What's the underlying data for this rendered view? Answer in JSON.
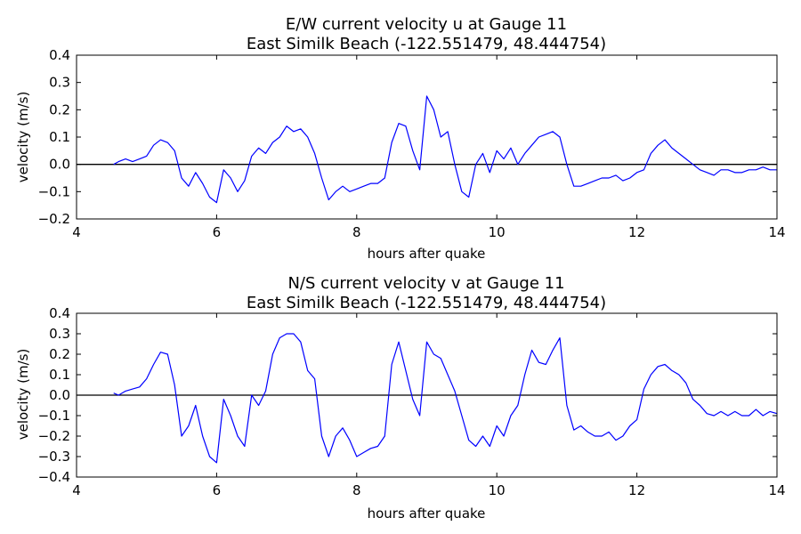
{
  "chart_data": [
    {
      "type": "line",
      "title": [
        "E/W current velocity u at Gauge 11",
        "East Similk Beach  (-122.551479, 48.444754)"
      ],
      "xlabel": "hours after quake",
      "ylabel": "velocity (m/s)",
      "xlim": [
        4,
        14
      ],
      "ylim": [
        -0.2,
        0.4
      ],
      "xticks": [
        "4",
        "6",
        "8",
        "10",
        "12",
        "14"
      ],
      "yticks": [
        "−0.2",
        "−0.1",
        "0.0",
        "0.1",
        "0.2",
        "0.3",
        "0.4"
      ],
      "zero_line": 0,
      "grid": false,
      "colors": {
        "series": "#0000ff",
        "zero_line": "#000000"
      },
      "series": [
        {
          "x": [
            4.53,
            4.6,
            4.7,
            4.8,
            4.9,
            5.0,
            5.1,
            5.2,
            5.3,
            5.4,
            5.5,
            5.6,
            5.7,
            5.8,
            5.9,
            6.0,
            6.1,
            6.2,
            6.3,
            6.4,
            6.5,
            6.6,
            6.7,
            6.8,
            6.9,
            7.0,
            7.1,
            7.2,
            7.3,
            7.4,
            7.5,
            7.6,
            7.7,
            7.8,
            7.9,
            8.0,
            8.1,
            8.2,
            8.3,
            8.4,
            8.5,
            8.6,
            8.7,
            8.8,
            8.9,
            9.0,
            9.1,
            9.2,
            9.3,
            9.4,
            9.5,
            9.6,
            9.7,
            9.8,
            9.9,
            10.0,
            10.1,
            10.2,
            10.3,
            10.4,
            10.5,
            10.6,
            10.7,
            10.8,
            10.9,
            11.0,
            11.1,
            11.2,
            11.3,
            11.4,
            11.5,
            11.6,
            11.7,
            11.8,
            11.9,
            12.0,
            12.1,
            12.2,
            12.3,
            12.4,
            12.5,
            12.6,
            12.7,
            12.8,
            12.9,
            13.0,
            13.1,
            13.2,
            13.3,
            13.4,
            13.5,
            13.6,
            13.7,
            13.8,
            13.9,
            14.0
          ],
          "y": [
            0.0,
            0.01,
            0.02,
            0.01,
            0.02,
            0.03,
            0.07,
            0.09,
            0.08,
            0.05,
            -0.05,
            -0.08,
            -0.03,
            -0.07,
            -0.12,
            -0.14,
            -0.02,
            -0.05,
            -0.1,
            -0.06,
            0.03,
            0.06,
            0.04,
            0.08,
            0.1,
            0.14,
            0.12,
            0.13,
            0.1,
            0.04,
            -0.05,
            -0.13,
            -0.1,
            -0.08,
            -0.1,
            -0.09,
            -0.08,
            -0.07,
            -0.07,
            -0.05,
            0.08,
            0.15,
            0.14,
            0.05,
            -0.02,
            0.25,
            0.2,
            0.1,
            0.12,
            0.0,
            -0.1,
            -0.12,
            0.0,
            0.04,
            -0.03,
            0.05,
            0.02,
            0.06,
            0.0,
            0.04,
            0.07,
            0.1,
            0.11,
            0.12,
            0.1,
            0.0,
            -0.08,
            -0.08,
            -0.07,
            -0.06,
            -0.05,
            -0.05,
            -0.04,
            -0.06,
            -0.05,
            -0.03,
            -0.02,
            0.04,
            0.07,
            0.09,
            0.06,
            0.04,
            0.02,
            0.0,
            -0.02,
            -0.03,
            -0.04,
            -0.02,
            -0.02,
            -0.03,
            -0.03,
            -0.02,
            -0.02,
            -0.01,
            -0.02,
            -0.02
          ]
        }
      ]
    },
    {
      "type": "line",
      "title": [
        "N/S current velocity v at Gauge 11",
        "East Similk Beach  (-122.551479, 48.444754)"
      ],
      "xlabel": "hours after quake",
      "ylabel": "velocity (m/s)",
      "xlim": [
        4,
        14
      ],
      "ylim": [
        -0.4,
        0.4
      ],
      "xticks": [
        "4",
        "6",
        "8",
        "10",
        "12",
        "14"
      ],
      "yticks": [
        "−0.4",
        "−0.3",
        "−0.2",
        "−0.1",
        "0.0",
        "0.1",
        "0.2",
        "0.3",
        "0.4"
      ],
      "zero_line": 0,
      "grid": false,
      "colors": {
        "series": "#0000ff",
        "zero_line": "#000000"
      },
      "series": [
        {
          "x": [
            4.53,
            4.6,
            4.7,
            4.8,
            4.9,
            5.0,
            5.1,
            5.2,
            5.3,
            5.4,
            5.5,
            5.6,
            5.7,
            5.8,
            5.9,
            6.0,
            6.1,
            6.2,
            6.3,
            6.4,
            6.5,
            6.6,
            6.7,
            6.8,
            6.9,
            7.0,
            7.1,
            7.2,
            7.3,
            7.4,
            7.5,
            7.6,
            7.7,
            7.8,
            7.9,
            8.0,
            8.1,
            8.2,
            8.3,
            8.4,
            8.5,
            8.6,
            8.7,
            8.8,
            8.9,
            9.0,
            9.1,
            9.2,
            9.3,
            9.4,
            9.5,
            9.6,
            9.7,
            9.8,
            9.9,
            10.0,
            10.1,
            10.2,
            10.3,
            10.4,
            10.5,
            10.6,
            10.7,
            10.8,
            10.9,
            11.0,
            11.1,
            11.2,
            11.3,
            11.4,
            11.5,
            11.6,
            11.7,
            11.8,
            11.9,
            12.0,
            12.1,
            12.2,
            12.3,
            12.4,
            12.5,
            12.6,
            12.7,
            12.8,
            12.9,
            13.0,
            13.1,
            13.2,
            13.3,
            13.4,
            13.5,
            13.6,
            13.7,
            13.8,
            13.9,
            14.0
          ],
          "y": [
            0.01,
            0.0,
            0.02,
            0.03,
            0.04,
            0.08,
            0.15,
            0.21,
            0.2,
            0.05,
            -0.2,
            -0.15,
            -0.05,
            -0.2,
            -0.3,
            -0.33,
            -0.02,
            -0.1,
            -0.2,
            -0.25,
            0.0,
            -0.05,
            0.02,
            0.2,
            0.28,
            0.3,
            0.3,
            0.26,
            0.12,
            0.08,
            -0.2,
            -0.3,
            -0.2,
            -0.16,
            -0.22,
            -0.3,
            -0.28,
            -0.26,
            -0.25,
            -0.2,
            0.15,
            0.26,
            0.12,
            -0.02,
            -0.1,
            0.26,
            0.2,
            0.18,
            0.1,
            0.02,
            -0.1,
            -0.22,
            -0.25,
            -0.2,
            -0.25,
            -0.15,
            -0.2,
            -0.1,
            -0.05,
            0.1,
            0.22,
            0.16,
            0.15,
            0.22,
            0.28,
            -0.05,
            -0.17,
            -0.15,
            -0.18,
            -0.2,
            -0.2,
            -0.18,
            -0.22,
            -0.2,
            -0.15,
            -0.12,
            0.03,
            0.1,
            0.14,
            0.15,
            0.12,
            0.1,
            0.06,
            -0.02,
            -0.05,
            -0.09,
            -0.1,
            -0.08,
            -0.1,
            -0.08,
            -0.1,
            -0.1,
            -0.07,
            -0.1,
            -0.08,
            -0.09
          ]
        }
      ]
    }
  ]
}
